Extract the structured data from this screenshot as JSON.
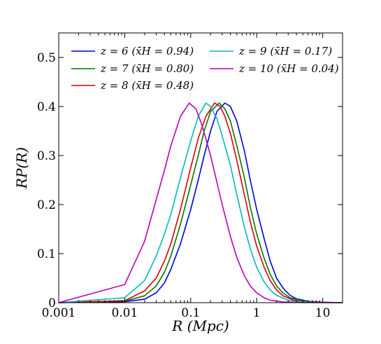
{
  "chart_data": {
    "type": "line",
    "xscale": "log",
    "xlim": [
      0.001,
      20
    ],
    "ylim": [
      0,
      0.55
    ],
    "xlabel": "R (Mpc)",
    "ylabel": "RP(R)",
    "grid": false,
    "legend_position": "top",
    "x_ticks": [
      {
        "value": 0.001,
        "label": "0.001"
      },
      {
        "value": 0.01,
        "label": "0.01"
      },
      {
        "value": 0.1,
        "label": "0.1"
      },
      {
        "value": 1,
        "label": "1"
      },
      {
        "value": 10,
        "label": "10"
      }
    ],
    "y_ticks": [
      {
        "value": 0,
        "label": "0"
      },
      {
        "value": 0.1,
        "label": "0.1"
      },
      {
        "value": 0.2,
        "label": "0.2"
      },
      {
        "value": 0.3,
        "label": "0.3"
      },
      {
        "value": 0.4,
        "label": "0.4"
      },
      {
        "value": 0.5,
        "label": "0.5"
      }
    ],
    "series": [
      {
        "name": "z = 6 (x̄H = 0.94)",
        "color": "#0000dd",
        "points": [
          [
            0.001,
            0.0
          ],
          [
            0.01,
            0.002
          ],
          [
            0.02,
            0.007
          ],
          [
            0.03,
            0.02
          ],
          [
            0.04,
            0.04
          ],
          [
            0.05,
            0.068
          ],
          [
            0.07,
            0.12
          ],
          [
            0.1,
            0.19
          ],
          [
            0.13,
            0.25
          ],
          [
            0.16,
            0.3
          ],
          [
            0.2,
            0.35
          ],
          [
            0.25,
            0.39
          ],
          [
            0.33,
            0.407
          ],
          [
            0.4,
            0.4
          ],
          [
            0.5,
            0.37
          ],
          [
            0.65,
            0.31
          ],
          [
            0.8,
            0.25
          ],
          [
            1.0,
            0.19
          ],
          [
            1.3,
            0.13
          ],
          [
            1.6,
            0.085
          ],
          [
            2.0,
            0.05
          ],
          [
            2.5,
            0.03
          ],
          [
            3.2,
            0.015
          ],
          [
            4,
            0.008
          ],
          [
            6,
            0.003
          ],
          [
            10,
            0.0008
          ],
          [
            20,
            0.0
          ]
        ]
      },
      {
        "name": "z = 7 (x̄H = 0.80)",
        "color": "#007700",
        "points": [
          [
            0.001,
            0.0
          ],
          [
            0.01,
            0.003
          ],
          [
            0.02,
            0.014
          ],
          [
            0.03,
            0.034
          ],
          [
            0.04,
            0.062
          ],
          [
            0.05,
            0.095
          ],
          [
            0.07,
            0.16
          ],
          [
            0.1,
            0.24
          ],
          [
            0.13,
            0.3
          ],
          [
            0.16,
            0.35
          ],
          [
            0.2,
            0.39
          ],
          [
            0.27,
            0.407
          ],
          [
            0.33,
            0.395
          ],
          [
            0.4,
            0.37
          ],
          [
            0.5,
            0.32
          ],
          [
            0.65,
            0.255
          ],
          [
            0.8,
            0.195
          ],
          [
            1.0,
            0.14
          ],
          [
            1.3,
            0.09
          ],
          [
            1.6,
            0.058
          ],
          [
            2.0,
            0.034
          ],
          [
            2.5,
            0.02
          ],
          [
            3.2,
            0.01
          ],
          [
            5,
            0.004
          ],
          [
            8,
            0.001
          ],
          [
            20,
            0.0
          ]
        ]
      },
      {
        "name": "z = 8 (x̄H = 0.48)",
        "color": "#dd0000",
        "points": [
          [
            0.001,
            0.0
          ],
          [
            0.01,
            0.004
          ],
          [
            0.02,
            0.024
          ],
          [
            0.03,
            0.05
          ],
          [
            0.04,
            0.085
          ],
          [
            0.05,
            0.12
          ],
          [
            0.07,
            0.19
          ],
          [
            0.1,
            0.275
          ],
          [
            0.13,
            0.335
          ],
          [
            0.17,
            0.38
          ],
          [
            0.23,
            0.407
          ],
          [
            0.28,
            0.4
          ],
          [
            0.33,
            0.38
          ],
          [
            0.4,
            0.345
          ],
          [
            0.5,
            0.29
          ],
          [
            0.65,
            0.22
          ],
          [
            0.8,
            0.165
          ],
          [
            1.0,
            0.115
          ],
          [
            1.3,
            0.072
          ],
          [
            1.6,
            0.045
          ],
          [
            2.0,
            0.026
          ],
          [
            2.5,
            0.014
          ],
          [
            3.5,
            0.006
          ],
          [
            5,
            0.002
          ],
          [
            10,
            0.0005
          ],
          [
            20,
            0.0
          ]
        ]
      },
      {
        "name": "z = 9 (x̄H = 0.17)",
        "color": "#00bbbb",
        "points": [
          [
            0.001,
            0.0
          ],
          [
            0.01,
            0.01
          ],
          [
            0.02,
            0.045
          ],
          [
            0.03,
            0.095
          ],
          [
            0.04,
            0.14
          ],
          [
            0.05,
            0.18
          ],
          [
            0.07,
            0.255
          ],
          [
            0.1,
            0.33
          ],
          [
            0.13,
            0.38
          ],
          [
            0.17,
            0.407
          ],
          [
            0.2,
            0.4
          ],
          [
            0.25,
            0.375
          ],
          [
            0.3,
            0.34
          ],
          [
            0.4,
            0.28
          ],
          [
            0.5,
            0.22
          ],
          [
            0.65,
            0.155
          ],
          [
            0.8,
            0.11
          ],
          [
            1.0,
            0.072
          ],
          [
            1.3,
            0.042
          ],
          [
            1.6,
            0.026
          ],
          [
            2.0,
            0.015
          ],
          [
            3,
            0.005
          ],
          [
            5,
            0.0015
          ],
          [
            10,
            0.0003
          ],
          [
            20,
            0.0
          ]
        ]
      },
      {
        "name": "z = 10 (x̄H = 0.04)",
        "color": "#bb00bb",
        "points": [
          [
            0.001,
            0.0
          ],
          [
            0.01,
            0.037
          ],
          [
            0.02,
            0.125
          ],
          [
            0.03,
            0.21
          ],
          [
            0.04,
            0.27
          ],
          [
            0.05,
            0.32
          ],
          [
            0.07,
            0.38
          ],
          [
            0.095,
            0.407
          ],
          [
            0.12,
            0.395
          ],
          [
            0.15,
            0.36
          ],
          [
            0.2,
            0.3
          ],
          [
            0.25,
            0.245
          ],
          [
            0.3,
            0.2
          ],
          [
            0.4,
            0.135
          ],
          [
            0.5,
            0.092
          ],
          [
            0.65,
            0.055
          ],
          [
            0.8,
            0.034
          ],
          [
            1.0,
            0.02
          ],
          [
            1.3,
            0.01
          ],
          [
            1.6,
            0.005
          ],
          [
            2.5,
            0.0015
          ],
          [
            5,
            0.0002
          ],
          [
            20,
            0.0
          ]
        ]
      }
    ]
  }
}
